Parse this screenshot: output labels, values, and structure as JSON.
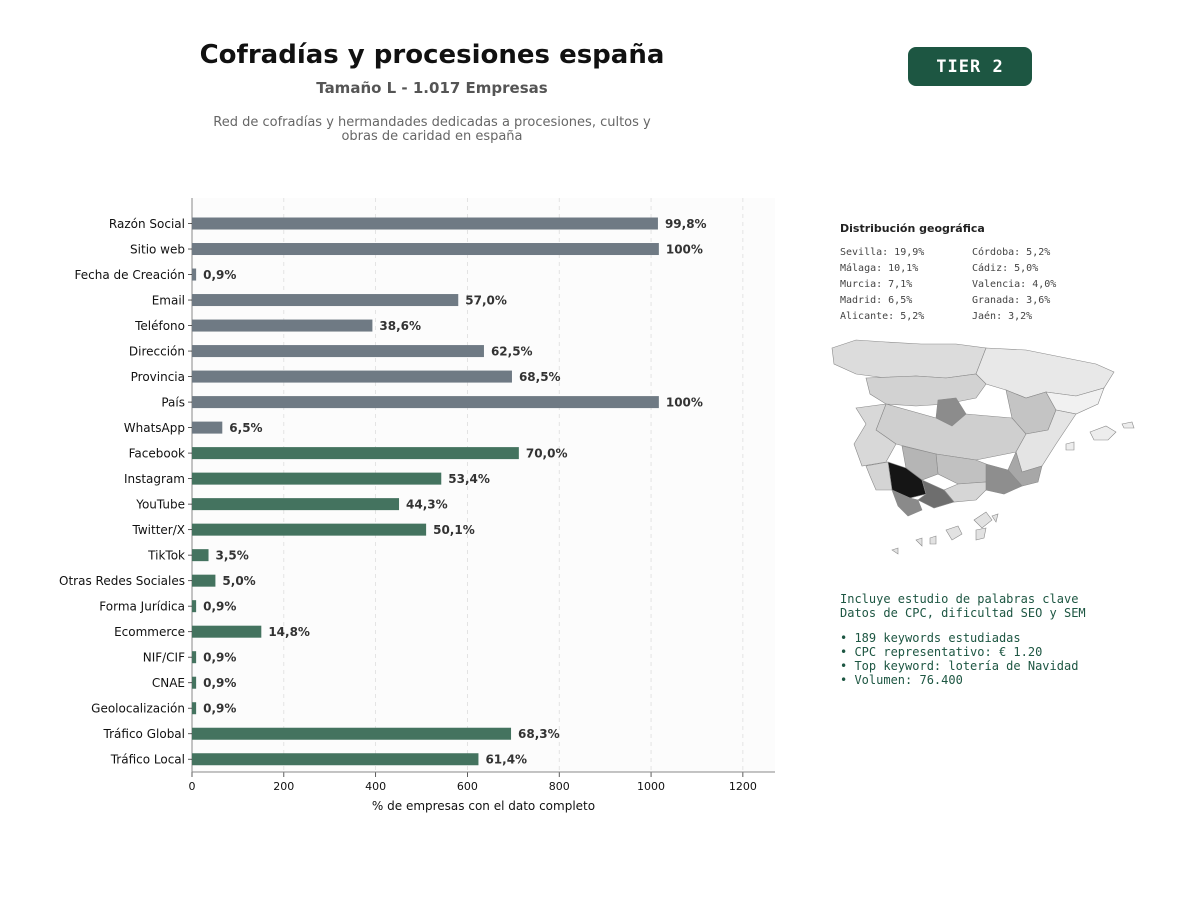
{
  "header": {
    "title": "Cofradías y procesiones españa",
    "subtitle": "Tamaño L - 1.017 Empresas",
    "description": "Red de cofradías y hermandades dedicadas a procesiones, cultos y obras de caridad en españa",
    "tier_label": "TIER 2"
  },
  "colors": {
    "contact_bar": "#6f7a84",
    "social_bar": "#44735f",
    "accent": "#1d5642"
  },
  "chart_data": {
    "type": "bar",
    "orientation": "horizontal",
    "categories": [
      "Razón Social",
      "Sitio web",
      "Fecha de Creación",
      "Email",
      "Teléfono",
      "Dirección",
      "Provincia",
      "País",
      "WhatsApp",
      "Facebook",
      "Instagram",
      "YouTube",
      "Twitter/X",
      "TikTok",
      "Otras Redes Sociales",
      "Forma Jurídica",
      "Ecommerce",
      "NIF/CIF",
      "CNAE",
      "Geolocalización",
      "Tráfico Global",
      "Tráfico Local"
    ],
    "values": [
      1015,
      1017,
      9,
      580,
      393,
      636,
      697,
      1017,
      66,
      712,
      543,
      451,
      510,
      36,
      51,
      9,
      151,
      9,
      9,
      9,
      695,
      624
    ],
    "data_labels": [
      "99,8%",
      "100%",
      "0,9%",
      "57,0%",
      "38,6%",
      "62,5%",
      "68,5%",
      "100%",
      "6,5%",
      "70,0%",
      "53,4%",
      "44,3%",
      "50,1%",
      "3,5%",
      "5,0%",
      "0,9%",
      "14,8%",
      "0,9%",
      "0,9%",
      "0,9%",
      "68,3%",
      "61,4%"
    ],
    "bar_group": [
      "contact",
      "contact",
      "contact",
      "contact",
      "contact",
      "contact",
      "contact",
      "contact",
      "contact",
      "social",
      "social",
      "social",
      "social",
      "social",
      "social",
      "social",
      "social",
      "social",
      "social",
      "social",
      "social",
      "social"
    ],
    "xlabel": "% de empresas con el dato completo",
    "ylabel": "",
    "xlim": [
      0,
      1270
    ],
    "xticks": [
      0,
      200,
      400,
      600,
      800,
      1000,
      1200
    ],
    "grid": "vertical dashed"
  },
  "geo": {
    "title": "Distribución geográfica",
    "items": [
      "Sevilla: 19,9%",
      "Córdoba: 5,2%",
      "Málaga: 10,1%",
      "Cádiz: 5,0%",
      "Murcia: 7,1%",
      "Valencia: 4,0%",
      "Madrid: 6,5%",
      "Granada: 3,6%",
      "Alicante: 5,2%",
      "Jaén: 3,2%"
    ]
  },
  "keywords": {
    "line1": "Incluye estudio de palabras clave",
    "line2": "Datos de CPC, dificultad SEO y SEM",
    "bullets": [
      "• 189 keywords estudiadas",
      "• CPC representativo: € 1.20",
      "• Top keyword: lotería de Navidad",
      "• Volumen: 76.400"
    ]
  }
}
